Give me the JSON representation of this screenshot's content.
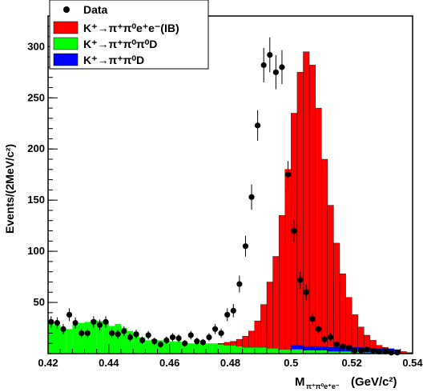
{
  "chart_data": {
    "type": "histogram",
    "x_axis": {
      "label_main": "M",
      "label_sub": "π⁺π⁰e⁺e⁻",
      "label_unit": "(GeV/c²)",
      "range": [
        0.42,
        0.54
      ],
      "ticks": [
        0.42,
        0.44,
        0.46,
        0.48,
        0.5,
        0.52,
        0.54
      ],
      "tick_labels": [
        "0.42",
        "0.44",
        "0.46",
        "0.48",
        "0.5",
        "0.52",
        "0.54"
      ]
    },
    "y_axis": {
      "label": "Events/(2MeV/c²)",
      "range": [
        0,
        330
      ],
      "ticks": [
        50,
        100,
        150,
        200,
        250,
        300
      ],
      "tick_labels": [
        "50",
        "100",
        "150",
        "200",
        "250",
        "300"
      ]
    },
    "bin_width": 0.002,
    "bin_edges_start": 0.42,
    "legend": {
      "placement": "top-left",
      "entries": [
        {
          "key": "data",
          "label": "Data",
          "style": "marker",
          "color": "#000000"
        },
        {
          "key": "ib",
          "label": "K⁺→π⁺π⁰e⁺e⁻(IB)",
          "style": "fill",
          "color": "#ff0000"
        },
        {
          "key": "dd",
          "label": "K⁺→π⁺π⁰π⁰D",
          "style": "fill",
          "color": "#00ff00"
        },
        {
          "key": "d",
          "label": "K⁺→π⁺π⁰D",
          "style": "fill",
          "color": "#0000ff"
        }
      ]
    },
    "series": [
      {
        "name": "K⁺→π⁺π⁰π⁰D",
        "color": "#00ff00",
        "values": [
          30,
          28,
          24,
          24,
          28,
          30,
          31,
          33,
          32,
          31,
          27,
          29,
          25,
          22,
          20,
          16,
          13,
          14,
          13,
          12,
          12,
          12,
          11,
          10,
          10,
          10,
          10,
          10,
          9,
          8,
          8,
          7,
          6,
          6,
          6,
          6,
          5,
          5,
          4,
          4,
          4,
          4,
          3,
          3,
          3,
          3,
          2,
          2,
          2,
          2,
          2,
          2,
          1,
          1,
          1,
          1,
          1,
          0,
          0,
          0
        ]
      },
      {
        "name": "K⁺→π⁺π⁰D",
        "color": "#0000ff",
        "values": [
          0,
          0,
          0,
          0,
          0,
          0,
          0,
          0,
          0,
          0,
          0,
          0,
          0,
          0,
          0,
          0,
          0,
          0,
          0,
          0,
          0,
          0,
          0,
          0,
          0,
          0,
          0,
          0,
          0,
          0,
          0,
          0,
          0,
          0,
          0,
          0,
          0,
          0,
          0,
          0,
          4,
          4,
          4,
          4,
          4,
          4,
          4,
          4,
          4,
          4,
          4,
          4,
          4,
          4,
          4,
          4,
          4,
          4,
          0,
          0
        ]
      },
      {
        "name": "K⁺→π⁺π⁰e⁺e⁻(IB)",
        "color": "#ff0000",
        "values": [
          0,
          0,
          0,
          0,
          0,
          0,
          0,
          0,
          0,
          0,
          0,
          0,
          0,
          0,
          0,
          0,
          0,
          0,
          0,
          0,
          0,
          0,
          0,
          0,
          0,
          0,
          0,
          0,
          0,
          0,
          0,
          0,
          0,
          0,
          0,
          0,
          0,
          0,
          0,
          0,
          0,
          0,
          0,
          0,
          0,
          0,
          0,
          0,
          0,
          0,
          0,
          0,
          0,
          0,
          0,
          0,
          0,
          0,
          0,
          0
        ]
      }
    ],
    "histogram_totals": [
      30,
      28,
      24,
      24,
      28,
      30,
      31,
      33,
      32,
      31,
      27,
      29,
      25,
      22,
      20,
      16,
      13,
      14,
      13,
      12,
      12,
      12,
      11,
      10,
      10,
      10,
      10,
      10,
      10,
      11,
      12,
      14,
      17,
      22,
      32,
      48,
      70,
      95,
      135,
      180,
      235,
      275,
      295,
      282,
      240,
      190,
      145,
      108,
      78,
      55,
      38,
      26,
      18,
      13,
      8,
      6,
      4,
      3,
      2,
      1
    ],
    "data_points": {
      "x": [
        0.421,
        0.423,
        0.425,
        0.427,
        0.429,
        0.431,
        0.433,
        0.435,
        0.437,
        0.439,
        0.441,
        0.443,
        0.445,
        0.447,
        0.449,
        0.451,
        0.453,
        0.455,
        0.457,
        0.459,
        0.461,
        0.463,
        0.465,
        0.467,
        0.469,
        0.471,
        0.473,
        0.475,
        0.477,
        0.479,
        0.481,
        0.483,
        0.485,
        0.487,
        0.489,
        0.491,
        0.493,
        0.495,
        0.497,
        0.499,
        0.501,
        0.503,
        0.505,
        0.507,
        0.509,
        0.511,
        0.513,
        0.515,
        0.517,
        0.519,
        0.521,
        0.523,
        0.525,
        0.527,
        0.529,
        0.531,
        0.533,
        0.535
      ],
      "y": [
        31,
        30,
        24,
        38,
        30,
        20,
        20,
        31,
        28,
        31,
        20,
        19,
        22,
        16,
        19,
        13,
        18,
        12,
        9,
        13,
        16,
        15,
        10,
        18,
        12,
        11,
        16,
        24,
        20,
        38,
        42,
        68,
        105,
        153,
        223,
        282,
        292,
        275,
        280,
        175,
        120,
        72,
        60,
        34,
        24,
        14,
        16,
        9,
        7,
        6,
        3,
        3,
        4,
        3,
        2,
        2,
        1,
        1
      ],
      "err": [
        5.6,
        5.5,
        4.9,
        6.2,
        5.5,
        4.5,
        4.5,
        5.6,
        5.3,
        5.6,
        4.5,
        4.4,
        4.7,
        4,
        4.4,
        3.6,
        4.2,
        3.5,
        3,
        3.6,
        4,
        3.9,
        3.2,
        4.2,
        3.5,
        3.3,
        4,
        4.9,
        4.5,
        6.2,
        6.5,
        8.2,
        10.2,
        12.4,
        14.9,
        16.8,
        17.1,
        16.6,
        16.7,
        13.2,
        11,
        8.5,
        7.7,
        5.8,
        4.9,
        3.7,
        4,
        3,
        2.6,
        2.4,
        1.7,
        1.7,
        2,
        1.7,
        1.4,
        1.4,
        1,
        1
      ]
    }
  }
}
